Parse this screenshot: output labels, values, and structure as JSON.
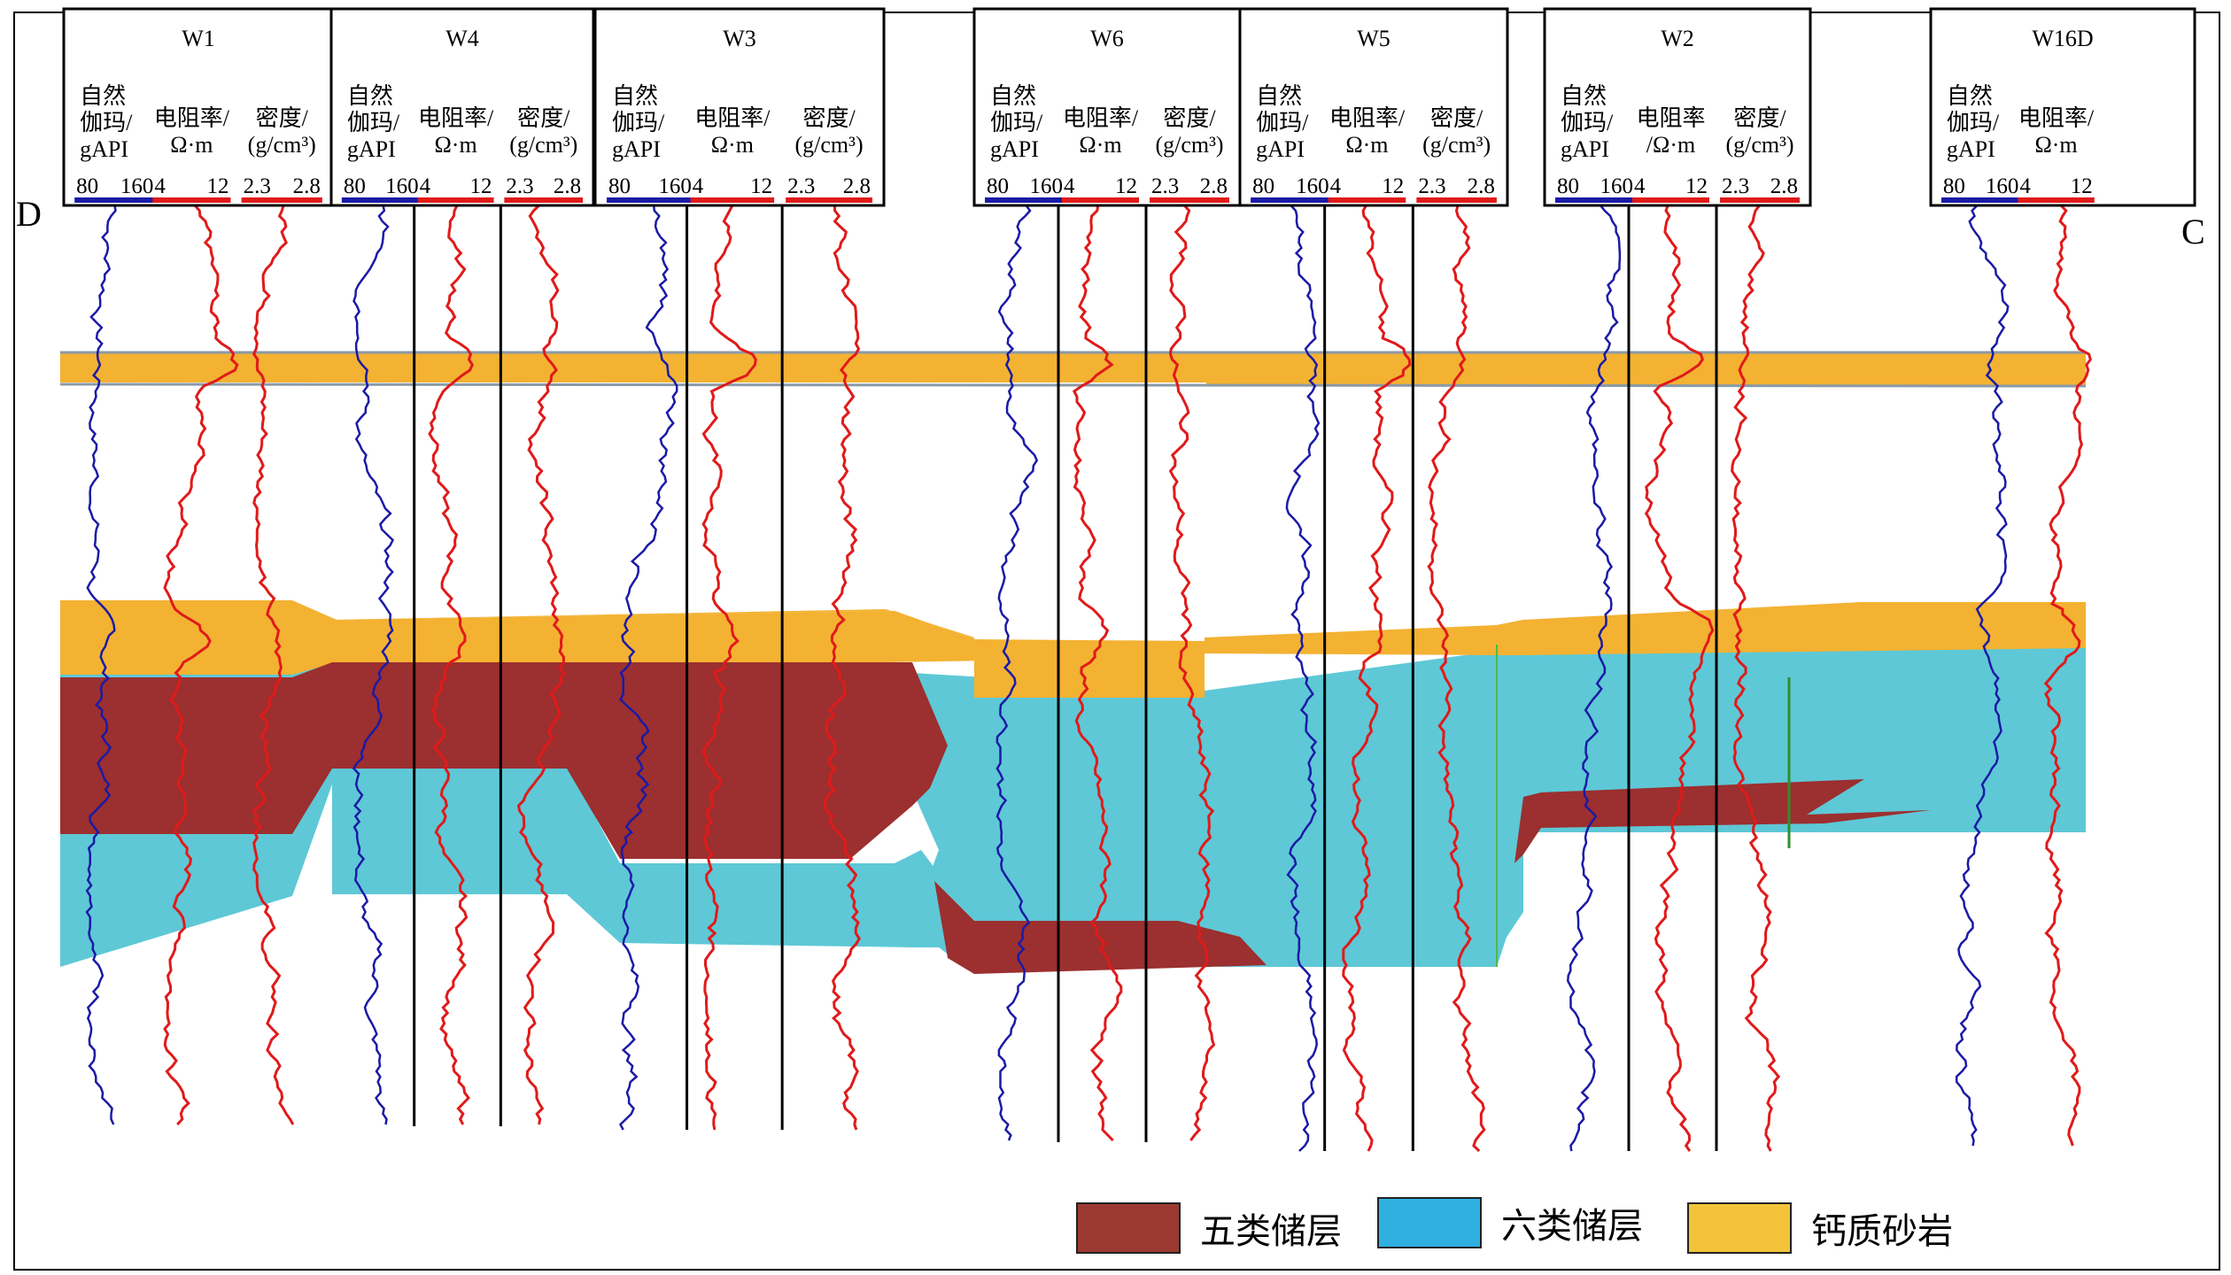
{
  "section": {
    "left_label": "D",
    "right_label": "C"
  },
  "wells": [
    {
      "name": "W1",
      "curves": [
        {
          "label": [
            "自然",
            "伽玛/",
            "gAPI"
          ],
          "min": "80",
          "max": "160",
          "color": "#1a1aa6"
        },
        {
          "label": [
            "电阻率/",
            "Ω·m"
          ],
          "min": "4",
          "max": "12",
          "color": "#e01a1a"
        },
        {
          "label": [
            "密度/",
            "(g/cm³)"
          ],
          "min": "2.3",
          "max": "2.8",
          "color": "#e01a1a"
        }
      ]
    },
    {
      "name": "W4",
      "curves": [
        {
          "label": [
            "自然",
            "伽玛/",
            "gAPI"
          ],
          "min": "80",
          "max": "160",
          "color": "#1a1aa6"
        },
        {
          "label": [
            "电阻率/",
            "Ω·m"
          ],
          "min": "4",
          "max": "12",
          "color": "#e01a1a"
        },
        {
          "label": [
            "密度/",
            "(g/cm³)"
          ],
          "min": "2.3",
          "max": "2.8",
          "color": "#e01a1a"
        }
      ]
    },
    {
      "name": "W3",
      "curves": [
        {
          "label": [
            "自然",
            "伽玛/",
            "gAPI"
          ],
          "min": "80",
          "max": "160",
          "color": "#1a1aa6"
        },
        {
          "label": [
            "电阻率/",
            "Ω·m"
          ],
          "min": "4",
          "max": "12",
          "color": "#e01a1a"
        },
        {
          "label": [
            "密度/",
            "(g/cm³)"
          ],
          "min": "2.3",
          "max": "2.8",
          "color": "#e01a1a"
        }
      ]
    },
    {
      "name": "W6",
      "curves": [
        {
          "label": [
            "自然",
            "伽玛/",
            "gAPI"
          ],
          "min": "80",
          "max": "160",
          "color": "#1a1aa6"
        },
        {
          "label": [
            "电阻率/",
            "Ω·m"
          ],
          "min": "4",
          "max": "12",
          "color": "#e01a1a"
        },
        {
          "label": [
            "密度/",
            "(g/cm³)"
          ],
          "min": "2.3",
          "max": "2.8",
          "color": "#e01a1a"
        }
      ]
    },
    {
      "name": "W5",
      "curves": [
        {
          "label": [
            "自然",
            "伽玛/",
            "gAPI"
          ],
          "min": "80",
          "max": "160",
          "color": "#1a1aa6"
        },
        {
          "label": [
            "电阻率/",
            "Ω·m"
          ],
          "min": "4",
          "max": "12",
          "color": "#e01a1a"
        },
        {
          "label": [
            "密度/",
            "(g/cm³)"
          ],
          "min": "2.3",
          "max": "2.8",
          "color": "#e01a1a"
        }
      ]
    },
    {
      "name": "W2",
      "curves": [
        {
          "label": [
            "自然",
            "伽玛/",
            "gAPI"
          ],
          "min": "80",
          "max": "160",
          "color": "#1a1aa6"
        },
        {
          "label": [
            "电阻率",
            "/Ω·m"
          ],
          "min": "4",
          "max": "12",
          "color": "#e01a1a"
        },
        {
          "label": [
            "密度/",
            "(g/cm³)"
          ],
          "min": "2.3",
          "max": "2.8",
          "color": "#e01a1a"
        }
      ]
    },
    {
      "name": "W16D",
      "curves": [
        {
          "label": [
            "自然",
            "伽玛/",
            "gAPI"
          ],
          "min": "80",
          "max": "160",
          "color": "#1a1aa6"
        },
        {
          "label": [
            "电阻率/",
            "Ω·m"
          ],
          "min": "4",
          "max": "12",
          "color": "#e01a1a"
        }
      ]
    }
  ],
  "colors": {
    "class5": "#9c2f2f",
    "class6": "#5ec8d6",
    "calcareous": "#f3b232",
    "gr_curve": "#1a1aa6",
    "res_curve": "#e01a1a"
  },
  "legend": [
    {
      "label": "五类储层",
      "color": "#9c3a32"
    },
    {
      "label": "六类储层",
      "color": "#2fb0e0"
    },
    {
      "label": "钙质砂岩",
      "color": "#f3c43a"
    }
  ]
}
